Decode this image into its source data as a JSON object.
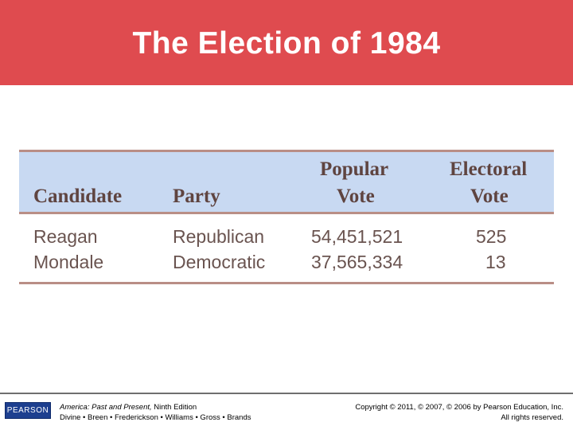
{
  "slide": {
    "title": "The Election of 1984",
    "header_color": "#df4b4f"
  },
  "table": {
    "header_band_color": "#c8d9f2",
    "headers": {
      "candidate": "Candidate",
      "party": "Party",
      "popular_vote_line1": "Popular",
      "popular_vote_line2": "Vote",
      "electoral_vote_line1": "Electoral",
      "electoral_vote_line2": "Vote"
    },
    "rows": [
      {
        "candidate": "Reagan",
        "party": "Republican",
        "popular_vote": "54,451,521",
        "electoral_vote": "525"
      },
      {
        "candidate": "Mondale",
        "party": "Democratic",
        "popular_vote": "37,565,334",
        "electoral_vote": "13"
      }
    ]
  },
  "footer": {
    "logo_text": "PEARSON",
    "book_title": "America: Past and Present,",
    "edition": " Ninth Edition",
    "authors": "Divine • Breen • Frederickson • Williams • Gross • Brands",
    "copyright": "Copyright © 2011, © 2007, © 2006 by Pearson Education, Inc.",
    "rights": "All rights reserved."
  }
}
